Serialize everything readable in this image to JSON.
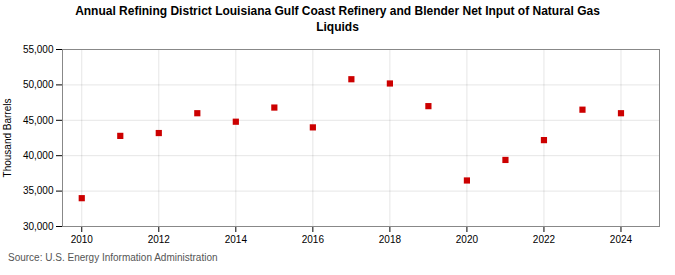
{
  "chart_data": {
    "type": "scatter",
    "title": "Annual Refining District Louisiana Gulf Coast Refinery and Blender Net Input of Natural Gas\nLiquids",
    "ylabel": "Thousand Barrels",
    "source": "Source: U.S. Energy Information Administration",
    "x": [
      2010,
      2011,
      2012,
      2013,
      2014,
      2015,
      2016,
      2017,
      2018,
      2019,
      2020,
      2021,
      2022,
      2023,
      2024
    ],
    "values": [
      34000,
      42800,
      43200,
      46000,
      44800,
      46800,
      44000,
      50800,
      50200,
      47000,
      36500,
      39400,
      42200,
      46500,
      46000
    ],
    "color": "#cc0000",
    "marker": "square",
    "xlim": [
      2009.5,
      2025.0
    ],
    "ylim": [
      30000,
      55000
    ],
    "xticks": [
      2010,
      2012,
      2014,
      2016,
      2018,
      2020,
      2022,
      2024
    ],
    "yticks": [
      {
        "value": 30000,
        "label": "30,000"
      },
      {
        "value": 35000,
        "label": "35,000"
      },
      {
        "value": 40000,
        "label": "40,000"
      },
      {
        "value": 45000,
        "label": "45,000"
      },
      {
        "value": 50000,
        "label": "50,000"
      },
      {
        "value": 55000,
        "label": "55,000"
      }
    ],
    "grid": true
  }
}
